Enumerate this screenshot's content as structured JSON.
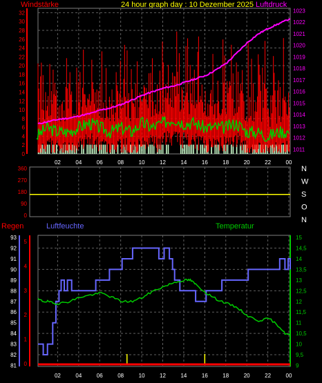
{
  "header": {
    "left_label": "Windstärke",
    "title": "24 hour graph day : 10 Dezember 2025",
    "right_label": "Luftdruck"
  },
  "lower": {
    "rain_label": "Regen",
    "humidity_label": "Luftfeuchte",
    "temperature_label": "Temperatur"
  },
  "colors": {
    "wind": "#ff0000",
    "gust": "#ff0000",
    "wind_avg": "#00cc00",
    "pressure": "#ff00ff",
    "calm": "#ccffcc",
    "direction": "#ffff00",
    "humidity": "#6666ff",
    "temperature": "#00cc00",
    "rain": "#ff0000",
    "grid": "#606060",
    "axis_text": "#ffffff"
  },
  "chart_data": [
    {
      "type": "line",
      "x_ticks": [
        "02",
        "04",
        "06",
        "08",
        "10",
        "12",
        "14",
        "16",
        "18",
        "20",
        "22",
        "00"
      ],
      "y_left_ticks": [
        "0",
        "2",
        "4",
        "6",
        "8",
        "10",
        "12",
        "14",
        "16",
        "18",
        "20",
        "22",
        "24",
        "26",
        "28",
        "30",
        "32"
      ],
      "ylim_left": [
        0,
        33
      ],
      "y_right_ticks": [
        "1011",
        "1012",
        "1013",
        "1014",
        "1015",
        "1016",
        "1017",
        "1018",
        "1019",
        "1020",
        "1021",
        "1022",
        "1023"
      ],
      "ylim_right": [
        1010.6,
        1023.2
      ],
      "series": [
        {
          "name": "Luftdruck",
          "axis": "right",
          "x": [
            0,
            1,
            2,
            3,
            4,
            5,
            6,
            7,
            8,
            9,
            10,
            11,
            12,
            13,
            14,
            15,
            16,
            17,
            18,
            19,
            20,
            21,
            22,
            23,
            24
          ],
          "values": [
            1013.2,
            1013.4,
            1013.6,
            1013.7,
            1013.9,
            1014.1,
            1014.4,
            1014.6,
            1014.9,
            1015.3,
            1015.7,
            1016.0,
            1016.3,
            1016.5,
            1016.8,
            1017.1,
            1017.4,
            1017.9,
            1018.5,
            1019.4,
            1020.3,
            1021.0,
            1021.5,
            1021.9,
            1022.3
          ]
        },
        {
          "name": "",
          "axis": "left",
          "x": [
            0,
            1,
            2,
            3,
            4,
            5,
            6,
            7,
            8,
            9,
            10,
            11,
            12,
            13,
            14,
            15,
            16,
            17,
            18,
            19,
            20,
            21,
            22,
            23,
            24
          ],
          "values": [
            4,
            6,
            5,
            5,
            6,
            7,
            6,
            5,
            6,
            5,
            7,
            6,
            7,
            8,
            7,
            7,
            6,
            6,
            6,
            7,
            5,
            5,
            4,
            5,
            5
          ]
        }
      ]
    },
    {
      "type": "line",
      "y_ticks": [
        "360",
        "270",
        "180",
        "90",
        "0"
      ],
      "y_right_ticks": [
        "N",
        "W",
        "S",
        "O",
        "N"
      ],
      "ylim": [
        0,
        360
      ],
      "series": [
        {
          "name": "",
          "x": [
            0,
            24
          ],
          "values": [
            160,
            160
          ]
        }
      ]
    },
    {
      "type": "line",
      "x_ticks": [
        "02",
        "04",
        "06",
        "08",
        "10",
        "12",
        "14",
        "16",
        "18",
        "20",
        "22",
        "00"
      ],
      "y_left_ticks": [
        "81",
        "82",
        "83",
        "84",
        "85",
        "86",
        "87",
        "88",
        "89",
        "90",
        "91",
        "92",
        "93"
      ],
      "ylim_left": [
        80.9,
        93.2
      ],
      "y_rain_ticks": [
        "0",
        "1",
        "2",
        "3",
        "4",
        "5"
      ],
      "ylim_rain": [
        0,
        5.2
      ],
      "y_right_ticks": [
        "9",
        "9,5",
        "10",
        "10,5",
        "11",
        "11,5",
        "12",
        "12,5",
        "13",
        "13,5",
        "14",
        "14,5",
        "15"
      ],
      "ylim_right": [
        8.95,
        15.1
      ],
      "series": [
        {
          "name": "Luftfeuchte",
          "axis": "left",
          "x": [
            0,
            0.5,
            0.9,
            1.4,
            1.7,
            2.0,
            2.2,
            2.5,
            2.8,
            3.2,
            4.5,
            5.5,
            6.3,
            6.8,
            7.5,
            8.0,
            8.3,
            9.0,
            11.5,
            12.0,
            12.5,
            12.8,
            13.0,
            13.5,
            14.0,
            14.8,
            15.0,
            15.8,
            16.0,
            17.0,
            17.5,
            18.5,
            19.0,
            20.0,
            22.5,
            23.0,
            23.5,
            23.8,
            24.0
          ],
          "values": [
            83,
            82,
            83,
            85,
            87,
            88,
            89,
            88,
            89,
            88,
            88,
            89,
            89,
            90,
            90,
            91,
            91,
            92,
            91,
            92,
            91,
            90,
            89,
            88,
            88,
            88,
            87,
            87,
            88,
            88,
            89,
            89,
            89,
            90,
            90,
            91,
            90,
            91,
            90
          ]
        },
        {
          "name": "Temperatur",
          "axis": "right",
          "x": [
            0,
            0.5,
            1,
            1.5,
            2,
            3,
            4,
            5,
            6,
            7,
            8,
            9,
            10,
            11,
            12,
            13,
            14,
            14.5,
            15,
            16,
            17,
            18,
            19,
            20,
            21,
            22,
            23,
            23.5,
            24
          ],
          "values": [
            12.1,
            12.0,
            12.0,
            11.9,
            11.9,
            12.0,
            12.2,
            12.3,
            12.4,
            12.2,
            12.0,
            12.0,
            12.2,
            12.5,
            12.7,
            12.9,
            13.0,
            13.0,
            12.8,
            12.4,
            12.1,
            11.9,
            11.7,
            11.3,
            11.1,
            11.2,
            10.8,
            10.5,
            10.4
          ]
        },
        {
          "name": "Regen",
          "axis": "rain",
          "x": [
            0,
            24
          ],
          "values": [
            0,
            0
          ]
        }
      ]
    }
  ]
}
